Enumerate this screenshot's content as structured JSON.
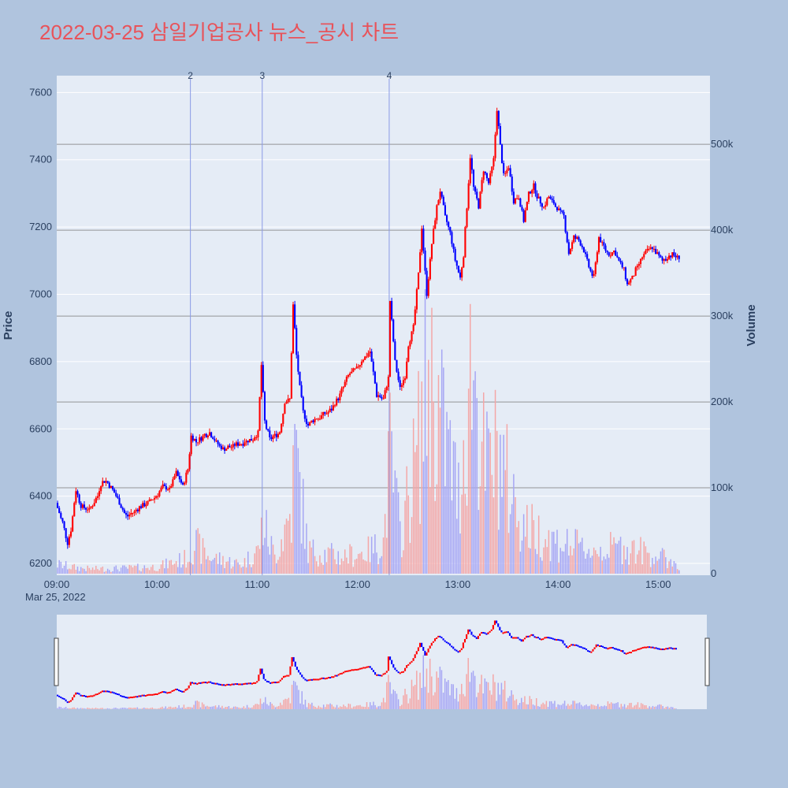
{
  "chart_data": {
    "type": "candlestick",
    "title": "2022-03-25 삼일기업공사 뉴스_공시 차트",
    "ylabel_left": "Price",
    "ylabel_right": "Volume",
    "x_tick_labels": [
      "09:00",
      "10:00",
      "11:00",
      "12:00",
      "13:00",
      "14:00",
      "15:00"
    ],
    "x_tick_minutes": [
      0,
      60,
      120,
      180,
      240,
      300,
      360
    ],
    "x_date_label": "Mar 25, 2022",
    "x_range_minutes": [
      0,
      391
    ],
    "price_ticks": [
      6200,
      6400,
      6600,
      6800,
      7000,
      7200,
      7400,
      7600
    ],
    "price_tick_labels": [
      "6200",
      "6400",
      "6600",
      "6800",
      "7000",
      "7200",
      "7400",
      "7600"
    ],
    "price_range": [
      6165,
      7650
    ],
    "volume_ticks": [
      0,
      100000,
      200000,
      300000,
      400000,
      500000
    ],
    "volume_tick_labels": [
      "0",
      "100k",
      "200k",
      "300k",
      "400k",
      "500k"
    ],
    "volume_range": [
      0,
      580000
    ],
    "colors": {
      "up": "#ff0000",
      "down": "#0000ff",
      "up_volume": "#f4a6a6",
      "down_volume": "#a6a6f4",
      "event_line": "#8a9ae6",
      "plot_bg": "#e5ecf6",
      "page_bg": "#b0c4de",
      "grid": "#ffffff",
      "volume_grid": "#808080",
      "title": "#e8535a"
    },
    "events": [
      {
        "label": "2",
        "minute": 80
      },
      {
        "label": "3",
        "minute": 123
      },
      {
        "label": "4",
        "minute": 199
      }
    ],
    "price_path": [
      [
        0,
        6380
      ],
      [
        4,
        6320
      ],
      [
        7,
        6260
      ],
      [
        9,
        6300
      ],
      [
        12,
        6420
      ],
      [
        15,
        6370
      ],
      [
        20,
        6360
      ],
      [
        25,
        6400
      ],
      [
        27,
        6440
      ],
      [
        30,
        6445
      ],
      [
        34,
        6420
      ],
      [
        38,
        6380
      ],
      [
        42,
        6340
      ],
      [
        46,
        6350
      ],
      [
        50,
        6365
      ],
      [
        55,
        6380
      ],
      [
        60,
        6400
      ],
      [
        64,
        6430
      ],
      [
        68,
        6420
      ],
      [
        72,
        6470
      ],
      [
        76,
        6430
      ],
      [
        79,
        6480
      ],
      [
        81,
        6580
      ],
      [
        84,
        6560
      ],
      [
        88,
        6580
      ],
      [
        92,
        6590
      ],
      [
        96,
        6560
      ],
      [
        100,
        6540
      ],
      [
        106,
        6550
      ],
      [
        112,
        6560
      ],
      [
        118,
        6570
      ],
      [
        121,
        6590
      ],
      [
        123,
        6790
      ],
      [
        125,
        6620
      ],
      [
        128,
        6570
      ],
      [
        131,
        6580
      ],
      [
        134,
        6590
      ],
      [
        137,
        6680
      ],
      [
        140,
        6690
      ],
      [
        142,
        6970
      ],
      [
        144,
        6820
      ],
      [
        146,
        6720
      ],
      [
        148,
        6650
      ],
      [
        151,
        6610
      ],
      [
        155,
        6630
      ],
      [
        160,
        6640
      ],
      [
        165,
        6660
      ],
      [
        170,
        6700
      ],
      [
        175,
        6760
      ],
      [
        180,
        6780
      ],
      [
        184,
        6810
      ],
      [
        188,
        6830
      ],
      [
        192,
        6700
      ],
      [
        196,
        6690
      ],
      [
        199,
        6750
      ],
      [
        200,
        6980
      ],
      [
        203,
        6800
      ],
      [
        206,
        6720
      ],
      [
        209,
        6760
      ],
      [
        211,
        6850
      ],
      [
        214,
        6900
      ],
      [
        217,
        7060
      ],
      [
        219,
        7200
      ],
      [
        222,
        7000
      ],
      [
        225,
        7150
      ],
      [
        228,
        7260
      ],
      [
        230,
        7310
      ],
      [
        233,
        7230
      ],
      [
        236,
        7180
      ],
      [
        239,
        7100
      ],
      [
        242,
        7050
      ],
      [
        244,
        7120
      ],
      [
        246,
        7260
      ],
      [
        248,
        7410
      ],
      [
        250,
        7320
      ],
      [
        253,
        7260
      ],
      [
        256,
        7370
      ],
      [
        259,
        7330
      ],
      [
        262,
        7400
      ],
      [
        264,
        7550
      ],
      [
        266,
        7440
      ],
      [
        268,
        7350
      ],
      [
        271,
        7380
      ],
      [
        274,
        7280
      ],
      [
        277,
        7290
      ],
      [
        280,
        7220
      ],
      [
        283,
        7300
      ],
      [
        286,
        7320
      ],
      [
        289,
        7280
      ],
      [
        292,
        7260
      ],
      [
        295,
        7290
      ],
      [
        298,
        7270
      ],
      [
        301,
        7250
      ],
      [
        304,
        7230
      ],
      [
        307,
        7120
      ],
      [
        310,
        7170
      ],
      [
        313,
        7160
      ],
      [
        316,
        7130
      ],
      [
        319,
        7080
      ],
      [
        322,
        7050
      ],
      [
        325,
        7170
      ],
      [
        328,
        7140
      ],
      [
        331,
        7120
      ],
      [
        334,
        7130
      ],
      [
        337,
        7100
      ],
      [
        340,
        7070
      ],
      [
        342,
        7030
      ],
      [
        345,
        7050
      ],
      [
        348,
        7080
      ],
      [
        351,
        7110
      ],
      [
        354,
        7130
      ],
      [
        357,
        7140
      ],
      [
        360,
        7120
      ],
      [
        363,
        7100
      ],
      [
        366,
        7110
      ],
      [
        369,
        7120
      ],
      [
        372,
        7110
      ]
    ],
    "volume_profile": [
      [
        0,
        12000
      ],
      [
        10,
        8000
      ],
      [
        20,
        6000
      ],
      [
        40,
        7000
      ],
      [
        60,
        9000
      ],
      [
        78,
        20000
      ],
      [
        82,
        40000
      ],
      [
        90,
        22000
      ],
      [
        110,
        12000
      ],
      [
        120,
        30000
      ],
      [
        123,
        65000
      ],
      [
        130,
        22000
      ],
      [
        140,
        80000
      ],
      [
        142,
        160000
      ],
      [
        150,
        30000
      ],
      [
        170,
        22000
      ],
      [
        185,
        28000
      ],
      [
        195,
        40000
      ],
      [
        199,
        150000
      ],
      [
        205,
        50000
      ],
      [
        215,
        150000
      ],
      [
        222,
        260000
      ],
      [
        230,
        190000
      ],
      [
        240,
        100000
      ],
      [
        248,
        280000
      ],
      [
        256,
        130000
      ],
      [
        264,
        160000
      ],
      [
        270,
        110000
      ],
      [
        280,
        60000
      ],
      [
        300,
        40000
      ],
      [
        320,
        30000
      ],
      [
        340,
        35000
      ],
      [
        360,
        22000
      ],
      [
        372,
        12000
      ]
    ]
  }
}
